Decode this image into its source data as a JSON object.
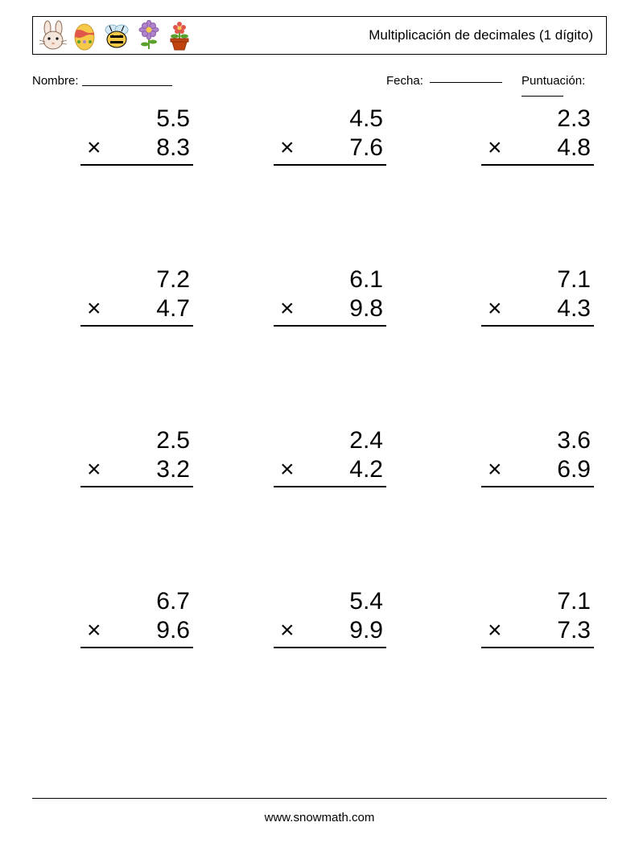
{
  "header": {
    "title": "Multiplicación de decimales (1 dígito)",
    "icons": [
      "bunny-icon",
      "egg-icon",
      "bee-icon",
      "flower-icon",
      "flowerpot-icon"
    ]
  },
  "fields": {
    "name_label": "Nombre: ",
    "date_label": "Fecha: ",
    "score_label": "Puntuación: ",
    "name_line_width": 112,
    "date_line_width": 90,
    "score_line_width": 52
  },
  "layout": {
    "problem_font_size": 30,
    "problem_cols_x": [
      60,
      300,
      558
    ],
    "problem_row_height": 200,
    "problem_width": 140,
    "operator": "×"
  },
  "problems": [
    [
      {
        "a": "5.5",
        "b": "8.3"
      },
      {
        "a": "4.5",
        "b": "7.6"
      },
      {
        "a": "2.3",
        "b": "4.8"
      }
    ],
    [
      {
        "a": "7.2",
        "b": "4.7"
      },
      {
        "a": "6.1",
        "b": "9.8"
      },
      {
        "a": "7.1",
        "b": "4.3"
      }
    ],
    [
      {
        "a": "2.5",
        "b": "3.2"
      },
      {
        "a": "2.4",
        "b": "4.2"
      },
      {
        "a": "3.6",
        "b": "6.9"
      }
    ],
    [
      {
        "a": "6.7",
        "b": "9.6"
      },
      {
        "a": "5.4",
        "b": "9.9"
      },
      {
        "a": "7.1",
        "b": "7.3"
      }
    ]
  ],
  "footer": {
    "text": "www.snowmath.com"
  },
  "colors": {
    "text": "#000000",
    "background": "#ffffff",
    "border": "#000000",
    "bunny_body": "#f5e6dc",
    "bunny_outline": "#8a6b55",
    "egg_body": "#f7c948",
    "egg_stripe": "#e2574c",
    "bee_body": "#f7c948",
    "bee_stripe": "#000000",
    "bee_wing": "#cce7f5",
    "flower_petal": "#b084cc",
    "flower_center": "#f7c948",
    "flower_stem": "#5aa02c",
    "pot": "#c1440e",
    "pot_flower": "#e2574c",
    "pot_leaf": "#5aa02c"
  }
}
